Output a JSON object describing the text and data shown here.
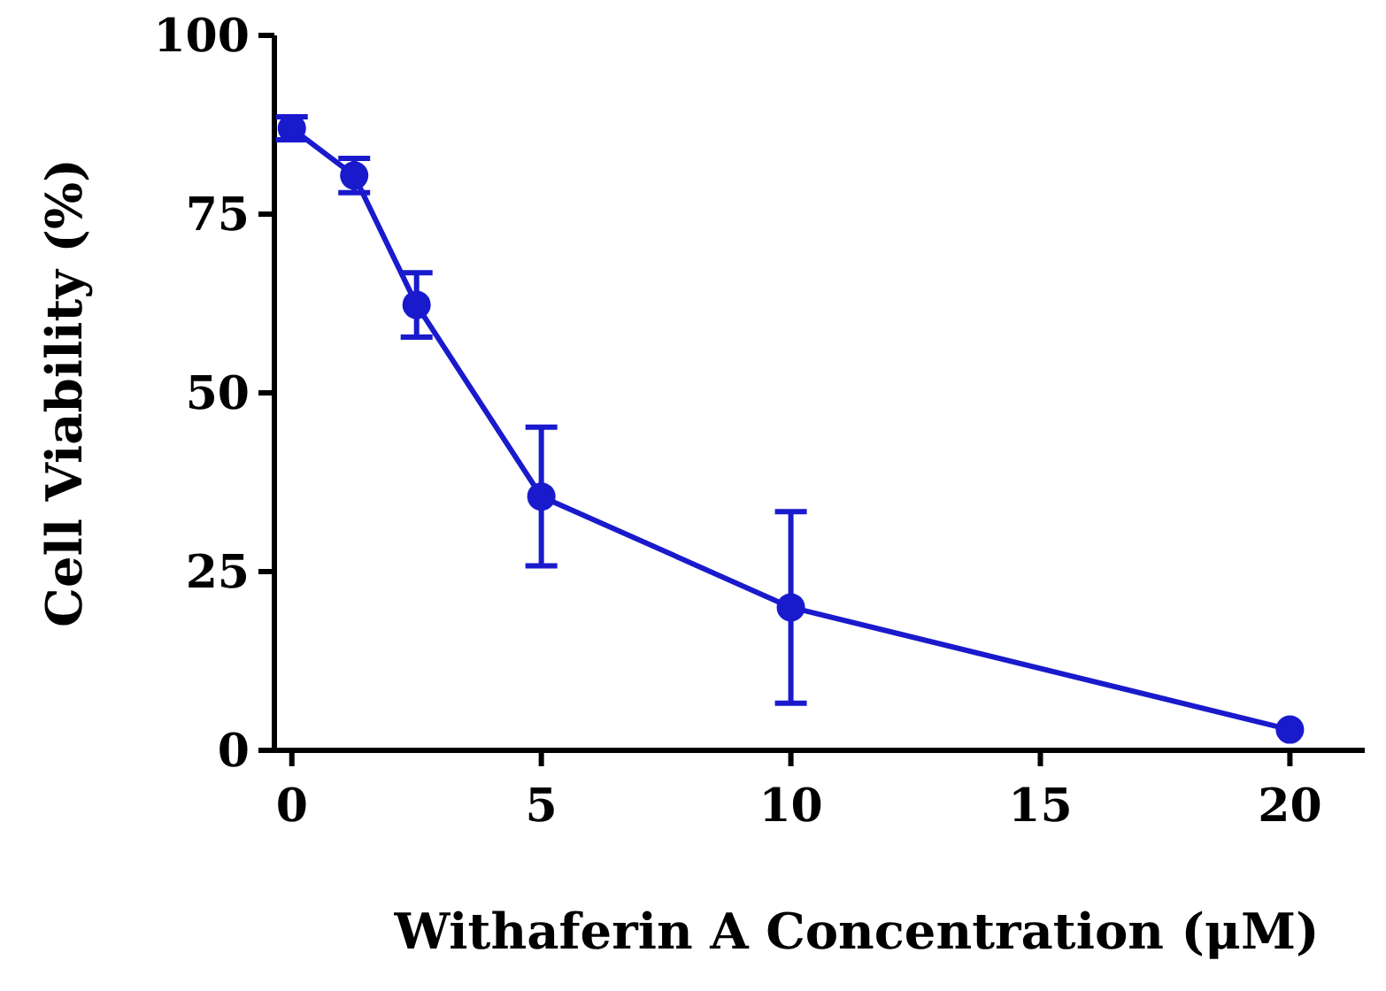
{
  "chart_data": {
    "type": "line",
    "xlabel": "Withaferin A Concentration (μM)",
    "ylabel": "Cell Viability (%)",
    "x": [
      0,
      1.25,
      2.5,
      5,
      10,
      20
    ],
    "series": [
      {
        "color": "#1a1acd",
        "values": [
          87,
          80.4,
          62.3,
          35.5,
          20,
          2.9
        ],
        "errors": [
          1.6,
          2.4,
          4.5,
          9.7,
          13.4,
          null
        ]
      }
    ],
    "xlim": [
      -0.35,
      21.5
    ],
    "xticks": [
      0,
      5,
      10,
      15,
      20
    ],
    "ylim": [
      0,
      100
    ],
    "yticks": [
      0,
      25,
      50,
      75,
      100
    ],
    "grid": false,
    "marker": "circle",
    "line_style": "solid"
  }
}
